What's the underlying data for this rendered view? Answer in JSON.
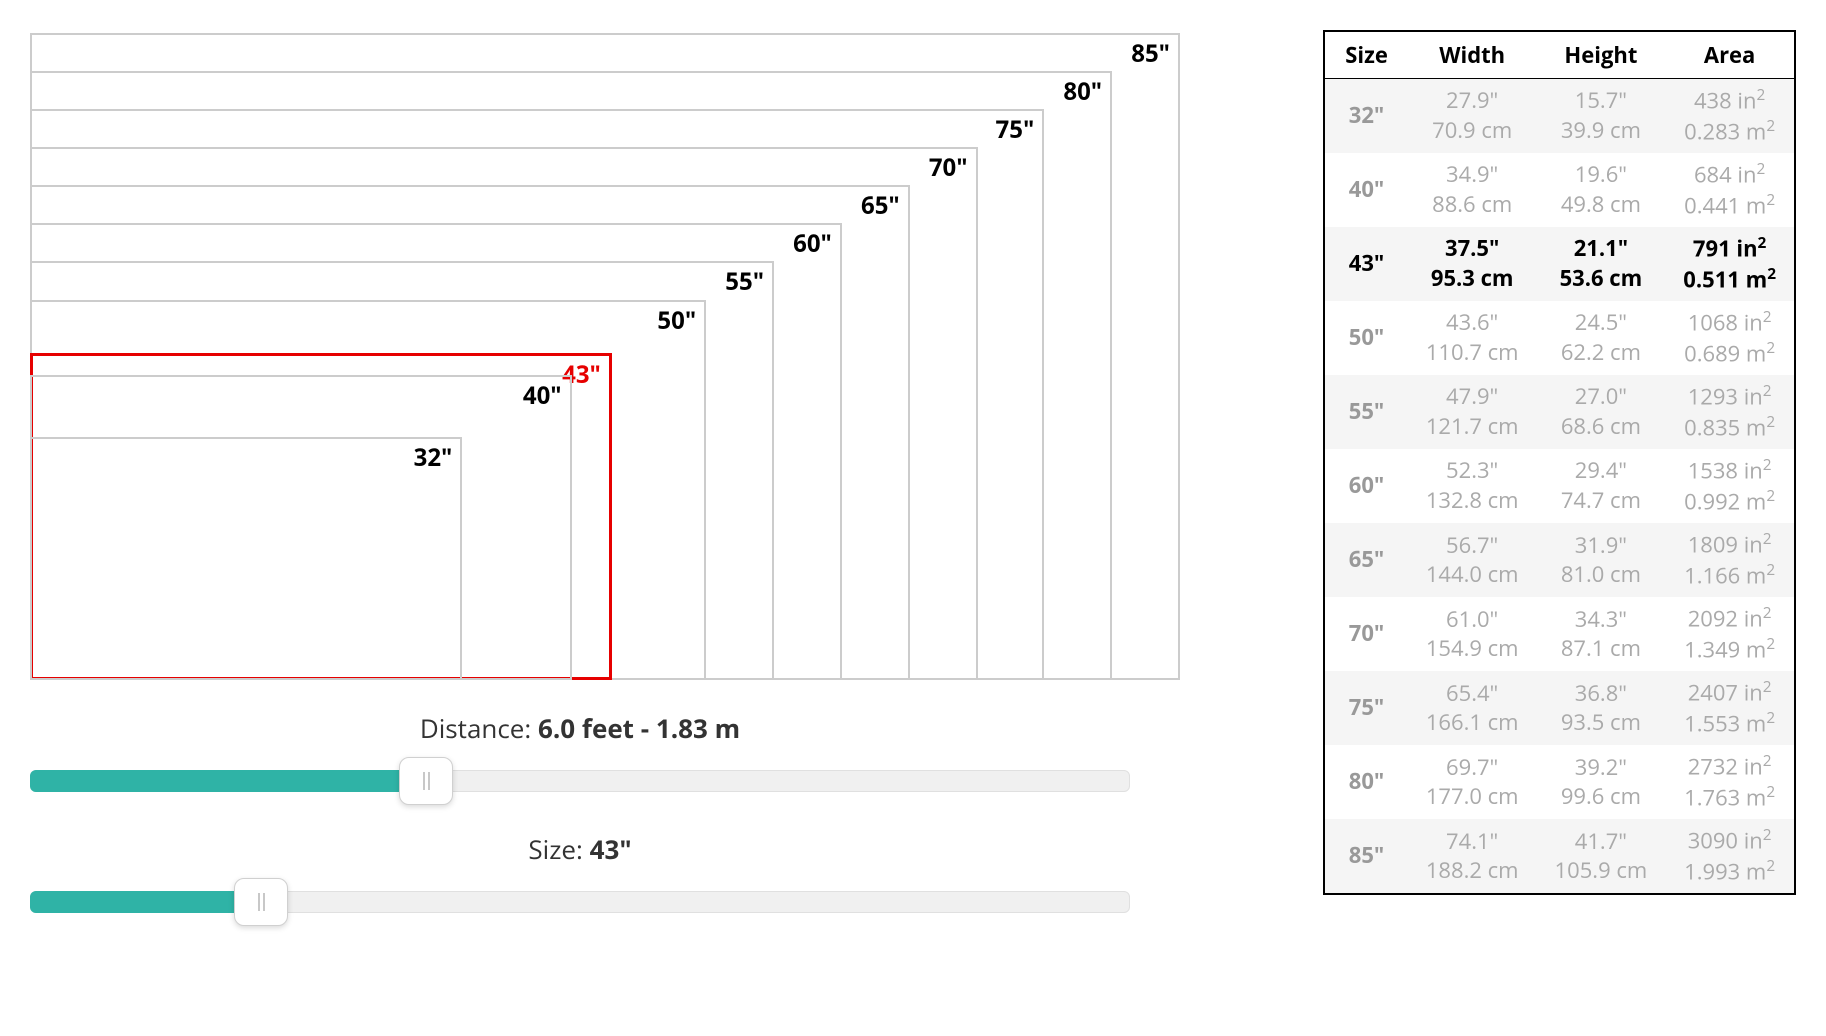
{
  "colors": {
    "accent": "#2fb3a6",
    "selected_border": "#e60000",
    "rect_border": "#cccccc",
    "table_muted": "#aaaaaa",
    "table_alt_bg": "#f5f5f5",
    "background": "#ffffff"
  },
  "diagram": {
    "container_width": 1150,
    "container_height": 650,
    "rects": [
      {
        "label": "85\"",
        "width_pct": 100.0,
        "selected": false
      },
      {
        "label": "80\"",
        "width_pct": 94.1,
        "selected": false
      },
      {
        "label": "75\"",
        "width_pct": 88.2,
        "selected": false
      },
      {
        "label": "70\"",
        "width_pct": 82.4,
        "selected": false
      },
      {
        "label": "65\"",
        "width_pct": 76.5,
        "selected": false
      },
      {
        "label": "60\"",
        "width_pct": 70.6,
        "selected": false
      },
      {
        "label": "55\"",
        "width_pct": 64.7,
        "selected": false
      },
      {
        "label": "50\"",
        "width_pct": 58.8,
        "selected": false
      },
      {
        "label": "43\"",
        "width_pct": 50.6,
        "selected": true
      },
      {
        "label": "40\"",
        "width_pct": 47.1,
        "selected": false
      },
      {
        "label": "32\"",
        "width_pct": 37.6,
        "selected": false
      }
    ]
  },
  "sliders": {
    "distance": {
      "label_prefix": "Distance: ",
      "value_text": "6.0 feet - 1.83 m",
      "fill_pct": 36
    },
    "size": {
      "label_prefix": "Size: ",
      "value_text": "43\"",
      "fill_pct": 21
    }
  },
  "table": {
    "columns": [
      "Size",
      "Width",
      "Height",
      "Area"
    ],
    "highlighted_size": "43\"",
    "rows": [
      {
        "size": "32\"",
        "width_in": "27.9\"",
        "width_cm": "70.9 cm",
        "height_in": "15.7\"",
        "height_cm": "39.9 cm",
        "area_in": "438 in",
        "area_m": "0.283 m"
      },
      {
        "size": "40\"",
        "width_in": "34.9\"",
        "width_cm": "88.6 cm",
        "height_in": "19.6\"",
        "height_cm": "49.8 cm",
        "area_in": "684 in",
        "area_m": "0.441 m"
      },
      {
        "size": "43\"",
        "width_in": "37.5\"",
        "width_cm": "95.3 cm",
        "height_in": "21.1\"",
        "height_cm": "53.6 cm",
        "area_in": "791 in",
        "area_m": "0.511 m"
      },
      {
        "size": "50\"",
        "width_in": "43.6\"",
        "width_cm": "110.7 cm",
        "height_in": "24.5\"",
        "height_cm": "62.2 cm",
        "area_in": "1068 in",
        "area_m": "0.689 m"
      },
      {
        "size": "55\"",
        "width_in": "47.9\"",
        "width_cm": "121.7 cm",
        "height_in": "27.0\"",
        "height_cm": "68.6 cm",
        "area_in": "1293 in",
        "area_m": "0.835 m"
      },
      {
        "size": "60\"",
        "width_in": "52.3\"",
        "width_cm": "132.8 cm",
        "height_in": "29.4\"",
        "height_cm": "74.7 cm",
        "area_in": "1538 in",
        "area_m": "0.992 m"
      },
      {
        "size": "65\"",
        "width_in": "56.7\"",
        "width_cm": "144.0 cm",
        "height_in": "31.9\"",
        "height_cm": "81.0 cm",
        "area_in": "1809 in",
        "area_m": "1.166 m"
      },
      {
        "size": "70\"",
        "width_in": "61.0\"",
        "width_cm": "154.9 cm",
        "height_in": "34.3\"",
        "height_cm": "87.1 cm",
        "area_in": "2092 in",
        "area_m": "1.349 m"
      },
      {
        "size": "75\"",
        "width_in": "65.4\"",
        "width_cm": "166.1 cm",
        "height_in": "36.8\"",
        "height_cm": "93.5 cm",
        "area_in": "2407 in",
        "area_m": "1.553 m"
      },
      {
        "size": "80\"",
        "width_in": "69.7\"",
        "width_cm": "177.0 cm",
        "height_in": "39.2\"",
        "height_cm": "99.6 cm",
        "area_in": "2732 in",
        "area_m": "1.763 m"
      },
      {
        "size": "85\"",
        "width_in": "74.1\"",
        "width_cm": "188.2 cm",
        "height_in": "41.7\"",
        "height_cm": "105.9 cm",
        "area_in": "3090 in",
        "area_m": "1.993 m"
      }
    ]
  }
}
